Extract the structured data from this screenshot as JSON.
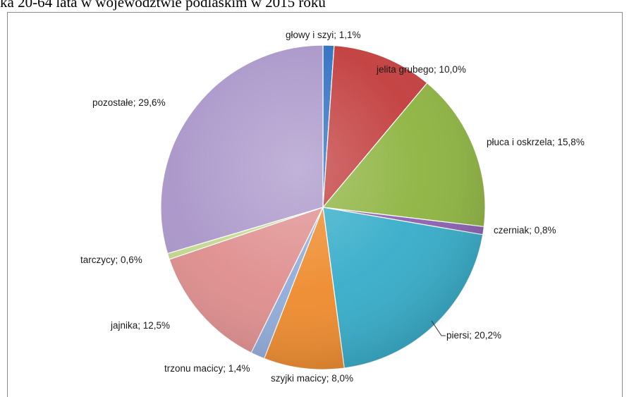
{
  "chart_data": {
    "type": "pie",
    "title": "ka 20-64 lata w województwie podlaskim w 2015 roku",
    "slices": [
      {
        "label": "głowy i szyi; 1,1%",
        "value": 1.1,
        "color": "#2e6fc0"
      },
      {
        "label": "jelita grubego; 10,0%",
        "value": 10.0,
        "color": "#c23b3b"
      },
      {
        "label": "płuca i oskrzela; 15,8%",
        "value": 15.8,
        "color": "#8db33f"
      },
      {
        "label": "czerniak; 0,8%",
        "value": 0.8,
        "color": "#8a5fb0"
      },
      {
        "label": "piersi; 20,2%",
        "value": 20.2,
        "color": "#35acc9"
      },
      {
        "label": "szyjki macicy; 8,0%",
        "value": 8.0,
        "color": "#ee8a2c"
      },
      {
        "label": "trzonu macicy; 1,4%",
        "value": 1.4,
        "color": "#8fabd9"
      },
      {
        "label": "jajnika; 12,5%",
        "value": 12.5,
        "color": "#df8d8d"
      },
      {
        "label": "tarczycy; 0,6%",
        "value": 0.6,
        "color": "#c2d88c"
      },
      {
        "label": "pozostałe; 29,6%",
        "value": 29.6,
        "color": "#a995c9"
      }
    ],
    "legend": "none",
    "data_labels": "outside"
  }
}
